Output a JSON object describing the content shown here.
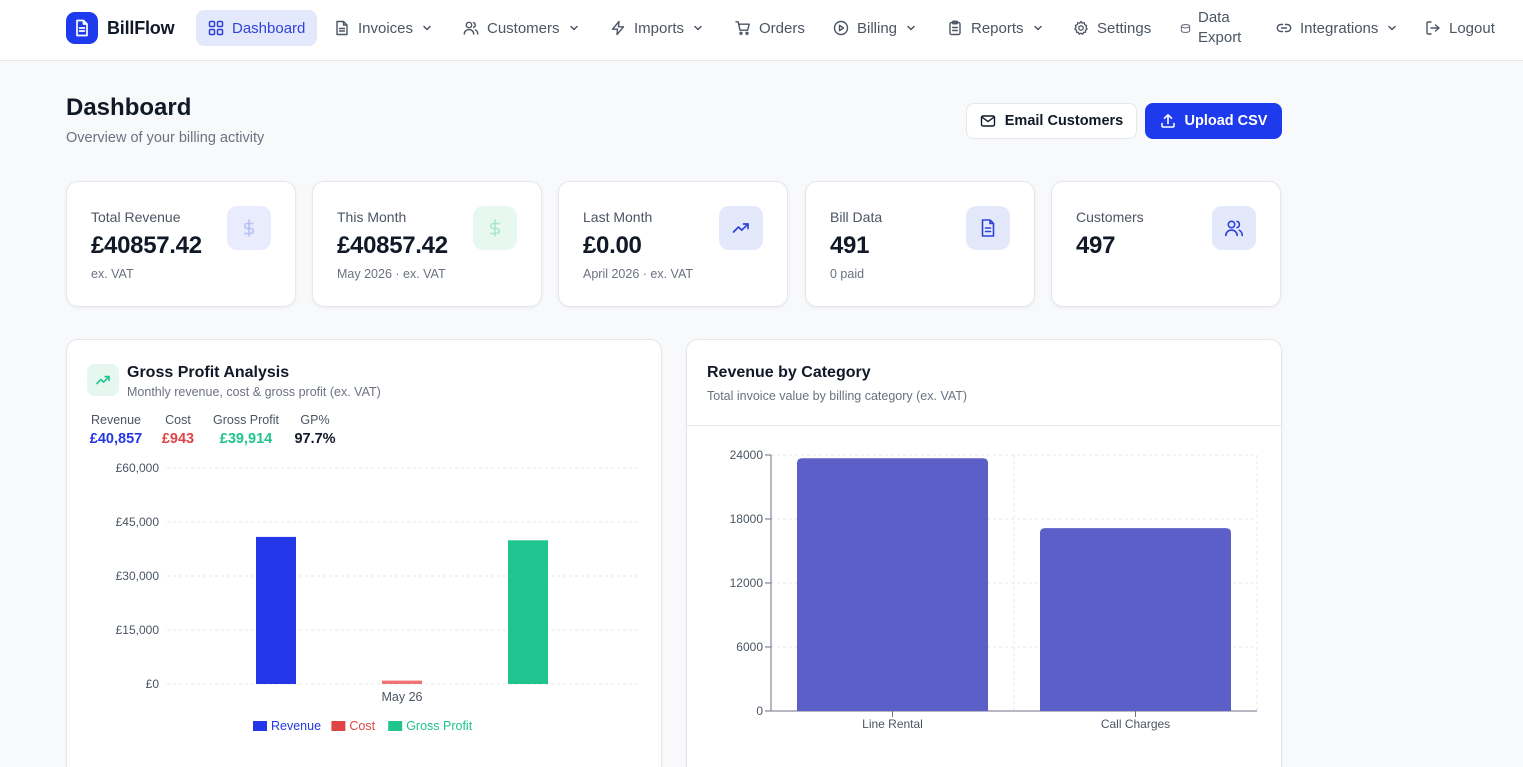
{
  "brand": {
    "name": "BillFlow"
  },
  "nav": {
    "dashboard": "Dashboard",
    "invoices": "Invoices",
    "customers": "Customers",
    "imports": "Imports",
    "orders": "Orders",
    "billing": "Billing",
    "reports": "Reports",
    "settings": "Settings",
    "data_export_line1": "Data",
    "data_export_line2": "Export",
    "integrations": "Integrations",
    "logout": "Logout"
  },
  "header": {
    "title": "Dashboard",
    "subtitle": "Overview of your billing activity",
    "email_button": "Email Customers",
    "upload_button": "Upload CSV"
  },
  "stats": [
    {
      "label": "Total Revenue",
      "value": "£40857.42",
      "note": "ex. VAT",
      "icon": "dollar-icon"
    },
    {
      "label": "This Month",
      "value": "£40857.42",
      "note": "May 2026 · ex. VAT",
      "icon": "dollar-icon"
    },
    {
      "label": "Last Month",
      "value": "£0.00",
      "note": "April 2026 · ex. VAT",
      "icon": "trending-up-icon"
    },
    {
      "label": "Bill Data",
      "value": "491",
      "note": "0 paid",
      "icon": "file-text-icon"
    },
    {
      "label": "Customers",
      "value": "497",
      "note": "",
      "icon": "users-icon"
    }
  ],
  "gross_profit": {
    "title": "Gross Profit Analysis",
    "subtitle": "Monthly revenue, cost & gross profit (ex. VAT)",
    "metrics": [
      {
        "label": "Revenue",
        "value": "£40,857",
        "color": "#2437e8"
      },
      {
        "label": "Cost",
        "value": "£943",
        "color": "#e04545"
      },
      {
        "label": "Gross Profit",
        "value": "£39,914",
        "color": "#20c48f"
      },
      {
        "label": "GP%",
        "value": "97.7%",
        "color": "#111827"
      }
    ]
  },
  "revenue_category": {
    "title": "Revenue by Category",
    "subtitle": "Total invoice value by billing category (ex. VAT)"
  },
  "colors": {
    "primary": "#1e3aed",
    "revenue": "#2437e8",
    "cost": "#f07272",
    "gross_profit": "#20c48f",
    "category_bar": "#5b5fc7"
  },
  "chart_data": [
    {
      "type": "bar",
      "categories": [
        "May 26"
      ],
      "series": [
        {
          "name": "Revenue",
          "values": [
            40857
          ]
        },
        {
          "name": "Cost",
          "values": [
            943
          ]
        },
        {
          "name": "Gross Profit",
          "values": [
            39914
          ]
        }
      ],
      "yticks": [
        "£0",
        "£15,000",
        "£30,000",
        "£45,000",
        "£60,000"
      ],
      "ylim": [
        0,
        60000
      ],
      "xlabel": "",
      "ylabel": "",
      "legend": "bottom",
      "grid": true
    },
    {
      "type": "bar",
      "categories": [
        "Line Rental",
        "Call Charges"
      ],
      "values": [
        23700,
        17150
      ],
      "yticks": [
        "0",
        "6000",
        "12000",
        "18000",
        "24000"
      ],
      "ylim": [
        0,
        24000
      ],
      "xlabel": "",
      "ylabel": "",
      "grid": true
    }
  ]
}
